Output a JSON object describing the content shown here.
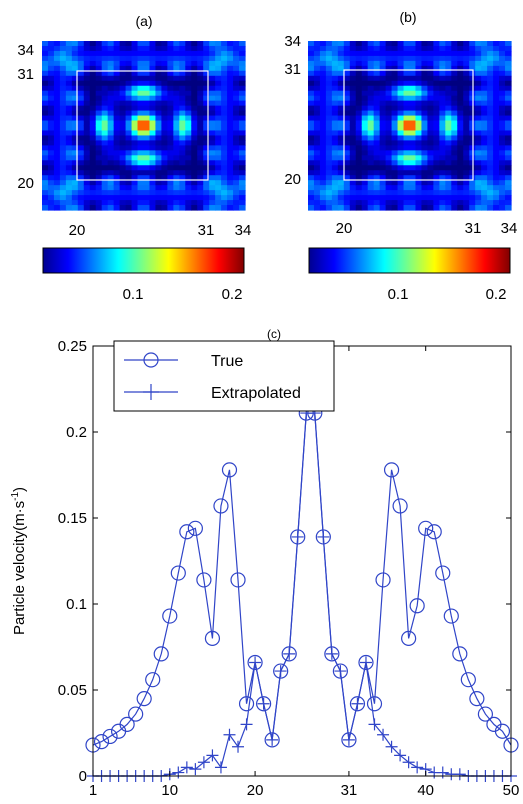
{
  "panels": {
    "a": {
      "label": "(a)",
      "left_ticks": [
        "34",
        "31",
        "20"
      ],
      "bottom_ticks": [
        "20",
        "31",
        "34"
      ]
    },
    "b": {
      "label": "(b)",
      "left_ticks": [
        "34",
        "31",
        "20"
      ],
      "bottom_ticks": [
        "20",
        "31",
        "34"
      ]
    }
  },
  "colorbar": {
    "tick_labels": [
      "0.1",
      "0.2"
    ],
    "range": [
      0,
      0.22
    ]
  },
  "chart_data": [
    {
      "type": "heatmap",
      "title": "(a)",
      "yticks": [
        "34",
        "31",
        "20"
      ],
      "xticks": [
        "20",
        "31",
        "34"
      ],
      "colorscale": "jet",
      "color_range": [
        0,
        0.22
      ],
      "colorbar_ticks": [
        "0.1",
        "0.2"
      ]
    },
    {
      "type": "heatmap",
      "title": "(b)",
      "yticks": [
        "34",
        "31",
        "20"
      ],
      "xticks": [
        "20",
        "31",
        "34"
      ],
      "colorscale": "jet",
      "color_range": [
        0,
        0.22
      ],
      "colorbar_ticks": [
        "0.1",
        "0.2"
      ]
    },
    {
      "type": "line",
      "title": "(c)",
      "xlabel": "",
      "ylabel": "Particle velocity(m·s",
      "ylabel_superscript": "-1",
      "ylabel_close": ")",
      "xlim": [
        1,
        50
      ],
      "ylim": [
        0,
        0.25
      ],
      "xticks": [
        "1",
        "10",
        "20",
        "31",
        "40",
        "50"
      ],
      "xtick_values": [
        1,
        10,
        20,
        31,
        40,
        50
      ],
      "yticks": [
        "0",
        "0.05",
        "0.1",
        "0.15",
        "0.2",
        "0.25"
      ],
      "ytick_values": [
        0,
        0.05,
        0.1,
        0.15,
        0.2,
        0.25
      ],
      "legend_position": "top-left",
      "color": "#3045c8",
      "series": [
        {
          "name": "True",
          "marker": "circle",
          "x": [
            1,
            2,
            3,
            4,
            5,
            6,
            7,
            8,
            9,
            10,
            11,
            12,
            13,
            14,
            15,
            16,
            17,
            18,
            19,
            20,
            21,
            22,
            23,
            24,
            25,
            26,
            27,
            28,
            29,
            30,
            31,
            32,
            33,
            34,
            35,
            36,
            37,
            38,
            39,
            40,
            41,
            42,
            43,
            44,
            45,
            46,
            47,
            48,
            49,
            50
          ],
          "values": [
            0.018,
            0.02,
            0.023,
            0.026,
            0.03,
            0.036,
            0.045,
            0.056,
            0.071,
            0.093,
            0.118,
            0.142,
            0.144,
            0.114,
            0.08,
            0.157,
            0.178,
            0.114,
            0.042,
            0.066,
            0.042,
            0.021,
            0.061,
            0.071,
            0.139,
            0.211,
            0.211,
            0.139,
            0.071,
            0.061,
            0.021,
            0.042,
            0.066,
            0.042,
            0.114,
            0.178,
            0.157,
            0.08,
            0.099,
            0.144,
            0.142,
            0.118,
            0.093,
            0.071,
            0.056,
            0.045,
            0.036,
            0.03,
            0.026,
            0.018
          ]
        },
        {
          "name": "Extrapolated",
          "marker": "plus",
          "x": [
            1,
            2,
            3,
            4,
            5,
            6,
            7,
            8,
            9,
            10,
            11,
            12,
            13,
            14,
            15,
            16,
            17,
            18,
            19,
            20,
            21,
            22,
            23,
            24,
            25,
            26,
            27,
            28,
            29,
            30,
            31,
            32,
            33,
            34,
            35,
            36,
            37,
            38,
            39,
            40,
            41,
            42,
            43,
            44,
            45,
            46,
            47,
            48,
            49,
            50
          ],
          "values": [
            0,
            0,
            0,
            0,
            0,
            0,
            0,
            0,
            0,
            0.001,
            0.002,
            0.005,
            0.004,
            0.008,
            0.012,
            0.005,
            0.024,
            0.017,
            0.03,
            0.066,
            0.042,
            0.021,
            0.061,
            0.071,
            0.139,
            0.211,
            0.211,
            0.139,
            0.071,
            0.061,
            0.021,
            0.042,
            0.066,
            0.03,
            0.024,
            0.017,
            0.012,
            0.008,
            0.005,
            0.004,
            0.002,
            0.002,
            0.001,
            0.001,
            0,
            0,
            0,
            0,
            0,
            0
          ]
        }
      ]
    }
  ]
}
